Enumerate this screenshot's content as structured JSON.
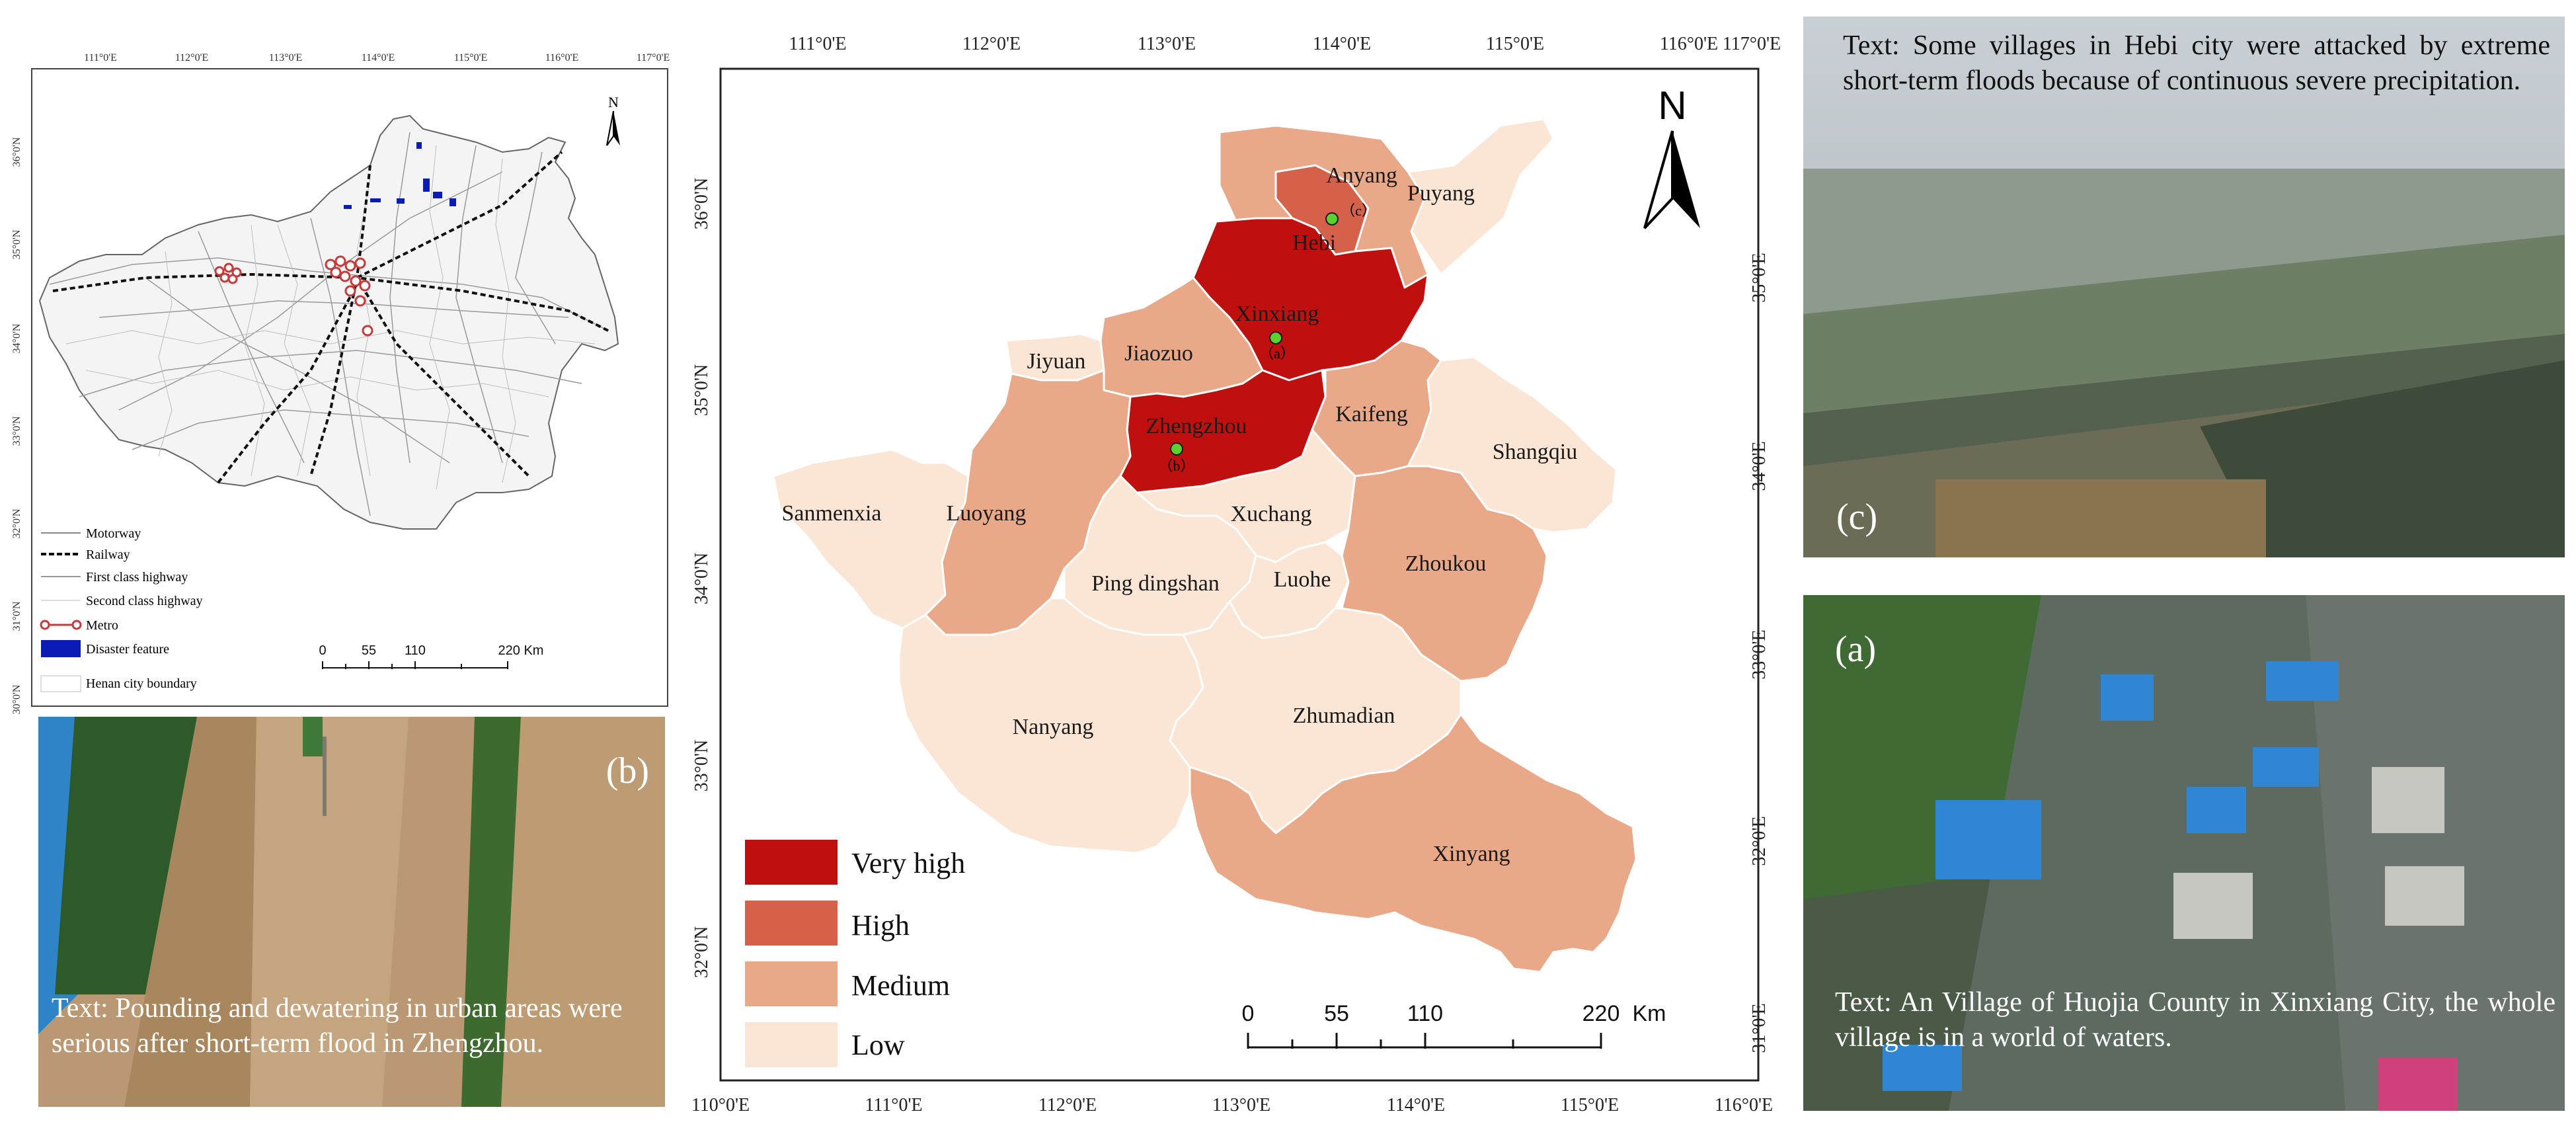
{
  "overview_map": {
    "lon_ticks": [
      "111°0'E",
      "112°0'E",
      "113°0'E",
      "114°0'E",
      "115°0'E",
      "116°0'E",
      "117°0'E"
    ],
    "lat_ticks": [
      "36°0'N",
      "35°0'N",
      "34°0'N",
      "33°0'N",
      "32°0'N",
      "31°0'N",
      "30°0'N"
    ],
    "north": "N",
    "legend": [
      {
        "label": "Motorway",
        "symbol": "thin-line"
      },
      {
        "label": "Railway",
        "symbol": "rail-line"
      },
      {
        "label": "First class highway",
        "symbol": "thin-line"
      },
      {
        "label": "Second class highway",
        "symbol": "thin-line"
      },
      {
        "label": "Metro",
        "symbol": "metro-line"
      },
      {
        "label": "Disaster feature",
        "symbol": "blue-box",
        "color": "#0b1bb5"
      },
      {
        "label": "Henan city boundary",
        "symbol": "outline-box"
      }
    ],
    "scale": [
      "0",
      "55",
      "110",
      "220 Km"
    ]
  },
  "main_map": {
    "top_ticks": [
      "111°0'E",
      "112°0'E",
      "113°0'E",
      "114°0'E",
      "115°0'E",
      "116°0'E",
      "117°0'E"
    ],
    "bottom_ticks": [
      "110°0'E",
      "111°0'E",
      "112°0'E",
      "113°0'E",
      "114°0'E",
      "115°0'E",
      "116°0'E"
    ],
    "left_ticks": [
      "36°0'N",
      "35°0'N",
      "34°0'N",
      "33°0'N",
      "32°0'N"
    ],
    "right_ticks": [
      "35°0'E",
      "34°0'E",
      "33°0'E",
      "32°0'E",
      "31°0'E"
    ],
    "north": "N",
    "cities": [
      {
        "name": "Anyang",
        "level": "high"
      },
      {
        "name": "Hebi",
        "level": "high"
      },
      {
        "name": "Puyang",
        "level": "low"
      },
      {
        "name": "Xinxiang",
        "level": "very_high"
      },
      {
        "name": "Jiyuan",
        "level": "low"
      },
      {
        "name": "Jiaozuo",
        "level": "medium"
      },
      {
        "name": "Zhengzhou",
        "level": "very_high"
      },
      {
        "name": "Kaifeng",
        "level": "medium"
      },
      {
        "name": "Shangqiu",
        "level": "low"
      },
      {
        "name": "Sanmenxia",
        "level": "low"
      },
      {
        "name": "Luoyang",
        "level": "medium"
      },
      {
        "name": "Xuchang",
        "level": "low"
      },
      {
        "name": "Ping dingshan",
        "level": "low"
      },
      {
        "name": "Luohe",
        "level": "low"
      },
      {
        "name": "Zhoukou",
        "level": "medium"
      },
      {
        "name": "Nanyang",
        "level": "low"
      },
      {
        "name": "Zhumadian",
        "level": "low"
      },
      {
        "name": "Xinyang",
        "level": "medium"
      }
    ],
    "site_markers": [
      "（a）",
      "（b）",
      "（c）"
    ],
    "legend": [
      {
        "label": "Very high",
        "color": "#c00f0f"
      },
      {
        "label": "High",
        "color": "#d5614a"
      },
      {
        "label": "Medium",
        "color": "#e9a887"
      },
      {
        "label": "Low",
        "color": "#fbe6d5"
      }
    ],
    "scale": [
      "0",
      "55",
      "110",
      "220",
      "Km"
    ]
  },
  "photos": {
    "b": {
      "label": "(b)",
      "caption": "Text: Pounding and dewatering in urban areas were serious after short-term flood in Zhengzhou."
    },
    "c": {
      "label": "(c)",
      "caption": "Text: Some villages in Hebi city were attacked by extreme short-term floods because of continuous severe precipitation."
    },
    "a": {
      "label": "(a)",
      "caption": "Text: An Village of Huojia County in Xinxiang City, the whole village is in a world of waters."
    }
  }
}
